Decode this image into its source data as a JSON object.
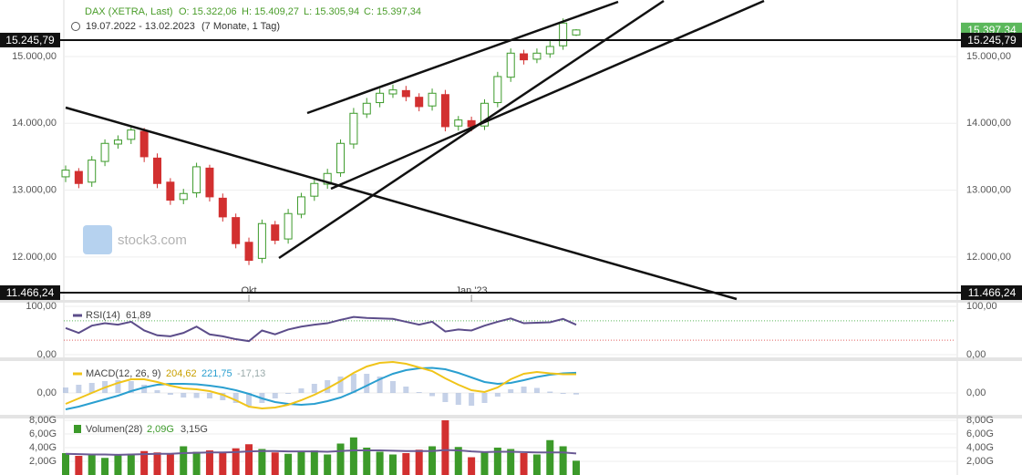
{
  "header": {
    "title": "DAX (XETRA, Last)",
    "ohlc": [
      "O: 15.322,06",
      "H: 15.409,27",
      "L: 15.305,94",
      "C: 15.397,34"
    ],
    "date_range": "19.07.2022 - 13.02.2023",
    "period": "(7 Monate, 1 Tag)"
  },
  "watermark": "stock3.com",
  "chart_data": [
    {
      "type": "candlestick",
      "up_color": "#3c9a2a",
      "down_color": "#d23030",
      "open": [
        13200,
        13280,
        13120,
        13430,
        13690,
        13760,
        13880,
        13480,
        13120,
        12860,
        12960,
        13330,
        12880,
        12590,
        12220,
        11980,
        12480,
        12270,
        12640,
        12910,
        13090,
        13260,
        13690,
        14140,
        14310,
        14440,
        14490,
        14390,
        14260,
        14430,
        13960,
        14040,
        13960,
        14310,
        14690,
        15040,
        14960,
        15040,
        15160,
        15322.06
      ],
      "high": [
        13370,
        13330,
        13510,
        13760,
        13820,
        13960,
        13930,
        13550,
        13180,
        13020,
        13410,
        13380,
        12950,
        12650,
        12290,
        12560,
        12540,
        12720,
        12960,
        13170,
        13320,
        13760,
        14230,
        14380,
        14520,
        14580,
        14560,
        14450,
        14520,
        14500,
        14110,
        14100,
        14360,
        14770,
        15120,
        15100,
        15120,
        15230,
        15570,
        15409.27
      ],
      "low": [
        13120,
        13030,
        13050,
        13360,
        13620,
        13690,
        13420,
        13030,
        12780,
        12790,
        12890,
        12830,
        12530,
        12130,
        11880,
        11910,
        12190,
        12200,
        12580,
        12840,
        13020,
        13200,
        13620,
        14080,
        14240,
        14380,
        14330,
        14180,
        14190,
        13880,
        13890,
        13880,
        13900,
        14240,
        14620,
        14880,
        14900,
        14980,
        15100,
        15305.94
      ],
      "close": [
        13300,
        13100,
        13450,
        13700,
        13750,
        13900,
        13500,
        13100,
        12850,
        12950,
        13350,
        12900,
        12600,
        12200,
        11950,
        12500,
        12250,
        12650,
        12900,
        13100,
        13250,
        13700,
        14150,
        14300,
        14450,
        14500,
        14400,
        14250,
        14450,
        13950,
        14050,
        13950,
        14300,
        14700,
        15050,
        14950,
        15050,
        15150,
        15500,
        15397.34
      ],
      "ylim": [
        11371,
        15777
      ],
      "yticks": [
        {
          "value": 12000,
          "label": "12.000,00"
        },
        {
          "value": 13000,
          "label": "13.000,00"
        },
        {
          "value": 14000,
          "label": "14.000,00"
        },
        {
          "value": 15000,
          "label": "15.000,00"
        }
      ],
      "xticks": [
        {
          "value": 14,
          "label": "Okt"
        },
        {
          "value": 31,
          "label": "Jan '23"
        }
      ],
      "levels": [
        {
          "value": 15245.79,
          "label": "15.245,79"
        },
        {
          "value": 11466.24,
          "label": "11.466,24"
        }
      ],
      "last": {
        "value": 15397.34,
        "label": "15.397,34"
      }
    },
    {
      "type": "line",
      "ylim": [
        0,
        100
      ],
      "yticks": [
        {
          "value": 0,
          "label": "0,00"
        },
        {
          "value": 100,
          "label": "100,00"
        }
      ],
      "levels": [
        {
          "value": 70,
          "color": "#5cb85c"
        },
        {
          "value": 30,
          "color": "#e06060"
        }
      ],
      "series": [
        {
          "name": "RSI(14)",
          "label": "61,89",
          "color": "#5c4d8a",
          "values": [
            55,
            45,
            60,
            65,
            62,
            68,
            50,
            40,
            38,
            45,
            58,
            42,
            38,
            32,
            28,
            50,
            42,
            52,
            58,
            62,
            65,
            72,
            78,
            76,
            75,
            74,
            68,
            62,
            68,
            48,
            52,
            50,
            60,
            68,
            75,
            65,
            66,
            67,
            74,
            61.89
          ]
        }
      ]
    },
    {
      "type": "macd",
      "ylim": [
        -240,
        340
      ],
      "yticks": [
        {
          "value": 0,
          "label": "0,00"
        }
      ],
      "series": [
        {
          "name": "MACD(12, 26, 9)",
          "label": "204,62",
          "color": "#f0c419",
          "values": [
            -120,
            -60,
            0,
            60,
            110,
            150,
            150,
            120,
            80,
            50,
            40,
            20,
            -20,
            -80,
            -150,
            -170,
            -160,
            -130,
            -80,
            -20,
            50,
            130,
            220,
            290,
            330,
            340,
            320,
            280,
            240,
            160,
            90,
            30,
            10,
            60,
            150,
            210,
            230,
            215,
            205,
            204.62
          ]
        },
        {
          "label": "221,75",
          "color": "#2a9fd0",
          "values": [
            -180,
            -150,
            -110,
            -70,
            -30,
            20,
            60,
            90,
            100,
            100,
            95,
            80,
            60,
            30,
            -10,
            -60,
            -100,
            -120,
            -130,
            -120,
            -90,
            -50,
            10,
            80,
            150,
            210,
            250,
            270,
            275,
            260,
            220,
            170,
            120,
            100,
            110,
            140,
            175,
            200,
            215,
            221.75
          ]
        },
        {
          "label": "-17,13",
          "color": "#9fb3d8",
          "values": [
            60,
            90,
            110,
            130,
            140,
            130,
            90,
            30,
            -20,
            -50,
            -55,
            -60,
            -80,
            -110,
            -140,
            -110,
            -60,
            -10,
            50,
            100,
            140,
            180,
            210,
            210,
            180,
            130,
            70,
            10,
            -35,
            -100,
            -130,
            -140,
            -110,
            -40,
            40,
            70,
            55,
            15,
            -10,
            -17.13
          ]
        }
      ]
    },
    {
      "type": "bar",
      "ylim": [
        0,
        8
      ],
      "yticks": [
        {
          "value": 2,
          "label": "2,00G"
        },
        {
          "value": 4,
          "label": "4,00G"
        },
        {
          "value": 6,
          "label": "6,00G"
        },
        {
          "value": 8,
          "label": "8,00G"
        }
      ],
      "name": "Volumen(28)",
      "label": "2,09G",
      "average_label": "3,15G",
      "average_color": "#6b5b95",
      "values": [
        3.2,
        2.8,
        3.0,
        2.5,
        2.9,
        3.1,
        3.5,
        3.3,
        3.0,
        4.2,
        3.4,
        3.6,
        3.2,
        3.9,
        4.5,
        3.8,
        3.3,
        3.1,
        3.4,
        3.6,
        3.0,
        4.6,
        5.5,
        4.0,
        3.4,
        3.0,
        3.2,
        3.7,
        4.2,
        8.0,
        4.1,
        2.6,
        3.4,
        4.0,
        3.8,
        3.2,
        3.0,
        5.1,
        4.2,
        2.09
      ],
      "average": [
        3.1,
        3.05,
        3.0,
        3.0,
        2.95,
        3.0,
        3.05,
        3.1,
        3.1,
        3.2,
        3.25,
        3.3,
        3.3,
        3.35,
        3.45,
        3.5,
        3.5,
        3.45,
        3.45,
        3.45,
        3.4,
        3.5,
        3.6,
        3.6,
        3.6,
        3.55,
        3.5,
        3.5,
        3.5,
        3.65,
        3.6,
        3.45,
        3.35,
        3.4,
        3.4,
        3.35,
        3.3,
        3.3,
        3.3,
        3.15
      ]
    }
  ]
}
